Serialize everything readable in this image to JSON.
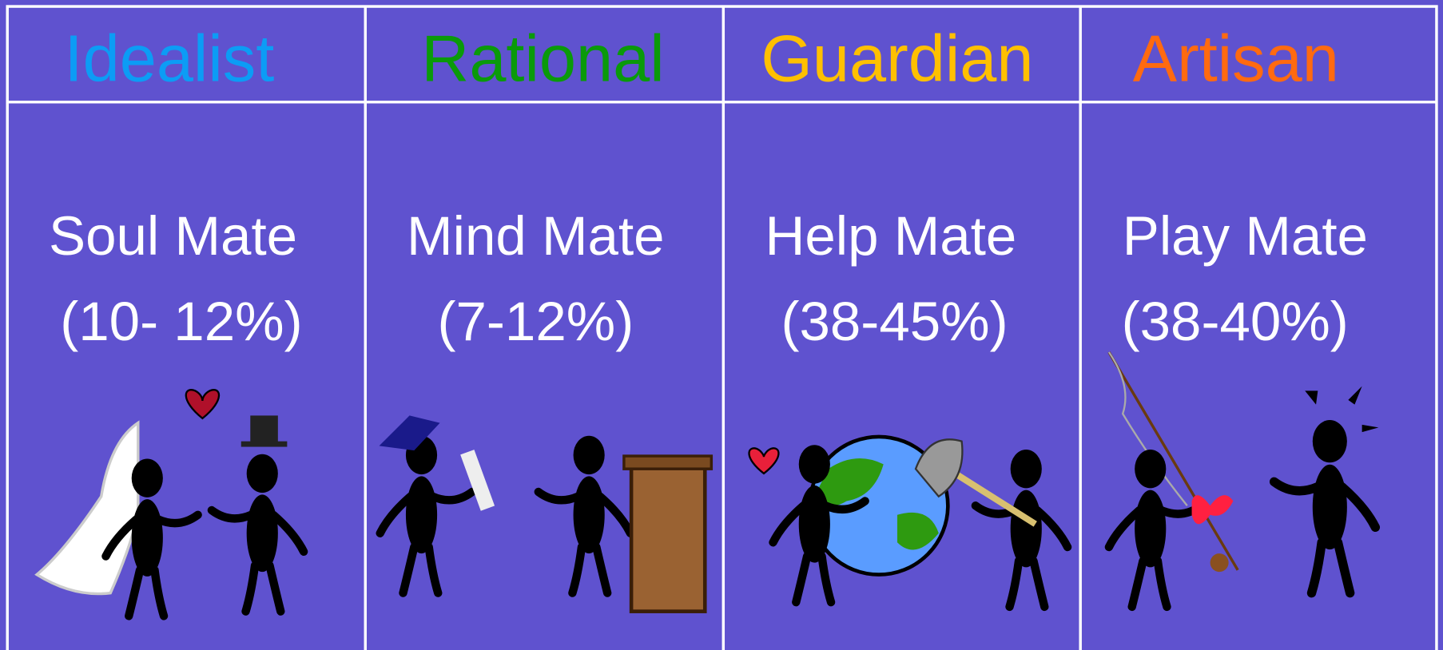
{
  "columns": [
    {
      "header": "Idealist",
      "title": "Soul Mate",
      "share": "(10- 12%)"
    },
    {
      "header": "Rational",
      "title": "Mind Mate",
      "share": "(7-12%)"
    },
    {
      "header": "Guardian",
      "title": "Help Mate",
      "share": "(38-45%)"
    },
    {
      "header": "Artisan",
      "title": "Play Mate",
      "share": "(38-40%)"
    }
  ]
}
